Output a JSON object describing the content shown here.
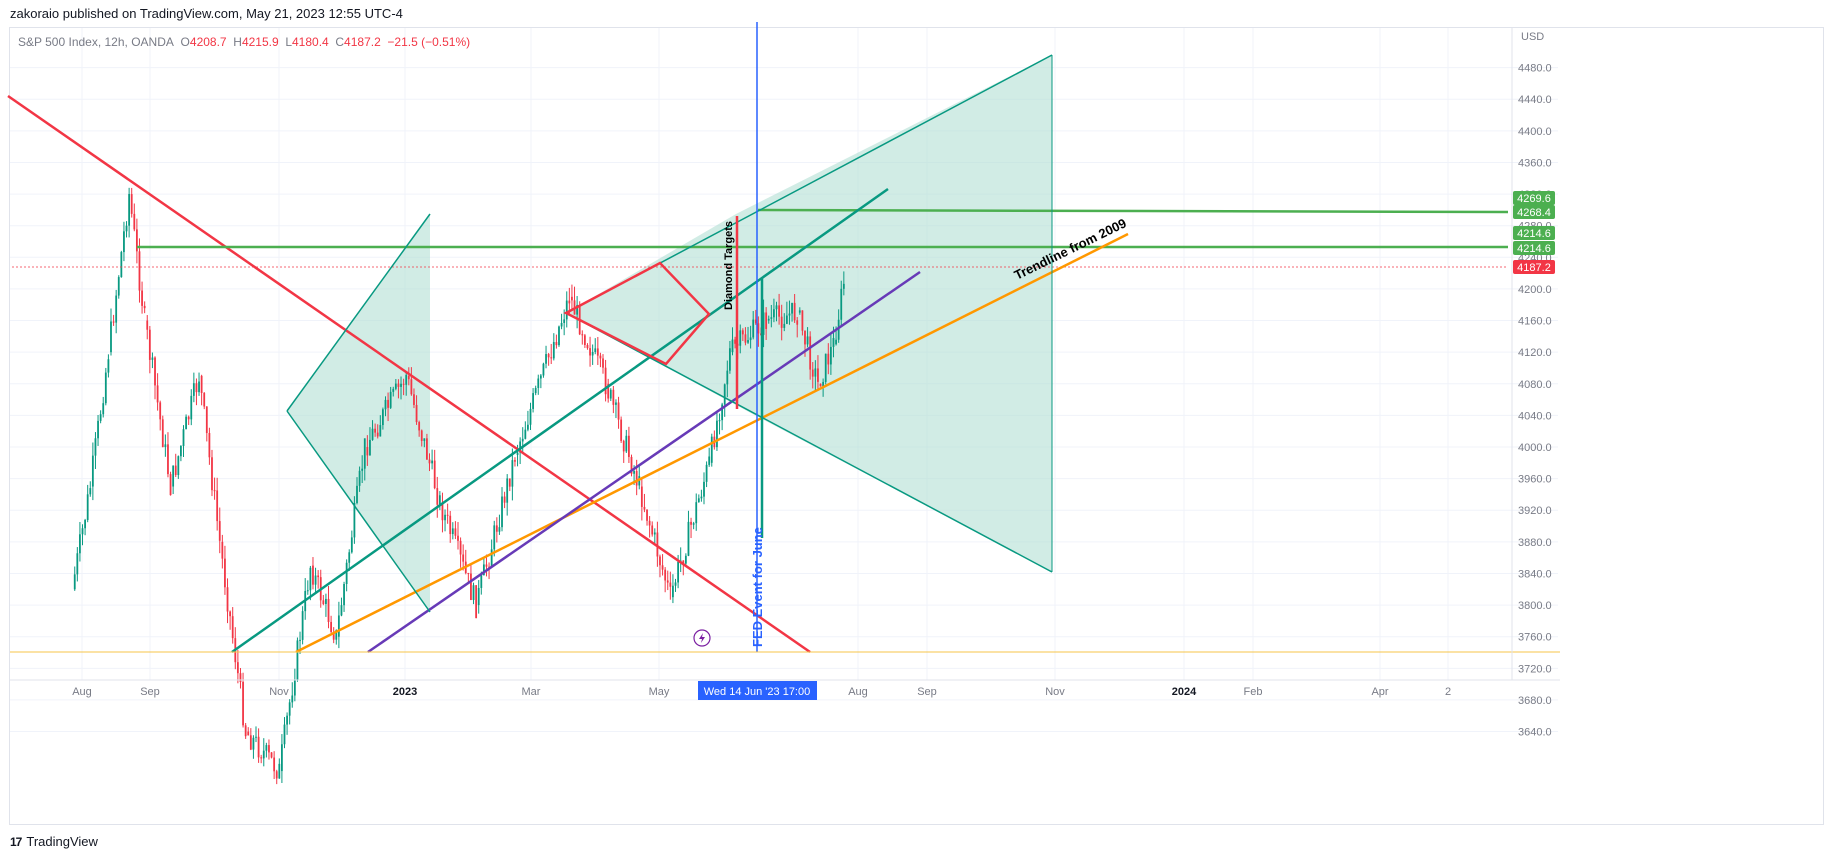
{
  "header": {
    "text": "zakoraio published on TradingView.com, May 21, 2023 12:55 UTC-4"
  },
  "legend": {
    "symbol": "S&P 500 Index, 12h, OANDA",
    "o_label": "O",
    "o_value": "4208.7",
    "h_label": "H",
    "h_value": "4215.9",
    "l_label": "L",
    "l_value": "4180.4",
    "c_label": "C",
    "c_value": "4187.2",
    "change": "−21.5 (−0.51%)"
  },
  "footer": {
    "logo": "17",
    "brand": "TradingView"
  },
  "colors": {
    "up": "#089981",
    "down": "#f23645",
    "teal_fill": "#b2dfd3",
    "teal_line": "#089981",
    "red_line": "#f23645",
    "green_line": "#4caf50",
    "orange_line": "#ff9800",
    "purple_line": "#673ab7",
    "blue_line": "#2962ff"
  },
  "chart_data": {
    "type": "candlestick",
    "symbol": "S&P 500 Index, 12h, OANDA",
    "currency_label": "USD",
    "y_axis": {
      "range": [
        3600,
        4520
      ],
      "ticks": [
        "4480.0",
        "4440.0",
        "4400.0",
        "4360.0",
        "4320.0",
        "4280.0",
        "4240.0",
        "4200.0",
        "4160.0",
        "4120.0",
        "4080.0",
        "4040.0",
        "4000.0",
        "3960.0",
        "3920.0",
        "3880.0",
        "3840.0",
        "3800.0",
        "3760.0",
        "3720.0",
        "3680.0",
        "3640.0"
      ]
    },
    "x_axis": {
      "ticks": [
        "Aug",
        "Sep",
        "Nov",
        "2023",
        "Mar",
        "May",
        "Aug",
        "Sep",
        "Nov",
        "2024",
        "Feb",
        "Apr",
        "2"
      ],
      "bold_ticks": [
        "2023",
        "2024"
      ],
      "crosshair_label": "Wed 14 Jun '23   17:00"
    },
    "price_labels": [
      {
        "value": "4269.6",
        "color": "#4caf50"
      },
      {
        "value": "4268.4",
        "color": "#4caf50"
      },
      {
        "value": "4214.6",
        "color": "#4caf50"
      },
      {
        "value": "4214.6",
        "color": "#4caf50"
      },
      {
        "value": "4187.2",
        "color": "#f23645"
      }
    ],
    "candle_path": [
      {
        "date": "2022-07-25",
        "price": 3820
      },
      {
        "date": "2022-08-01",
        "price": 3950
      },
      {
        "date": "2022-08-08",
        "price": 4120
      },
      {
        "date": "2022-08-16",
        "price": 4320
      },
      {
        "date": "2022-08-22",
        "price": 4160
      },
      {
        "date": "2022-09-01",
        "price": 3950
      },
      {
        "date": "2022-09-12",
        "price": 4090
      },
      {
        "date": "2022-09-20",
        "price": 3880
      },
      {
        "date": "2022-09-30",
        "price": 3640
      },
      {
        "date": "2022-10-13",
        "price": 3590
      },
      {
        "date": "2022-10-25",
        "price": 3850
      },
      {
        "date": "2022-11-04",
        "price": 3760
      },
      {
        "date": "2022-11-15",
        "price": 4000
      },
      {
        "date": "2022-12-01",
        "price": 4090
      },
      {
        "date": "2022-12-14",
        "price": 3930
      },
      {
        "date": "2022-12-28",
        "price": 3800
      },
      {
        "date": "2023-01-12",
        "price": 3990
      },
      {
        "date": "2023-02-02",
        "price": 4190
      },
      {
        "date": "2023-02-16",
        "price": 4080
      },
      {
        "date": "2023-03-01",
        "price": 3950
      },
      {
        "date": "2023-03-13",
        "price": 3810
      },
      {
        "date": "2023-03-28",
        "price": 3980
      },
      {
        "date": "2023-04-05",
        "price": 4120
      },
      {
        "date": "2023-04-19",
        "price": 4160
      },
      {
        "date": "2023-05-01",
        "price": 4170
      },
      {
        "date": "2023-05-09",
        "price": 4080
      },
      {
        "date": "2023-05-15",
        "price": 4130
      },
      {
        "date": "2023-05-19",
        "price": 4208
      }
    ],
    "annotations": [
      {
        "type": "text",
        "text": "Diamond Targets",
        "color": "#000000"
      },
      {
        "type": "text",
        "text": "FED Event for June",
        "color": "#2962ff"
      },
      {
        "type": "text",
        "text": "Trendline from 2009",
        "color": "#000000"
      }
    ],
    "event_icon": "lightning-icon"
  }
}
